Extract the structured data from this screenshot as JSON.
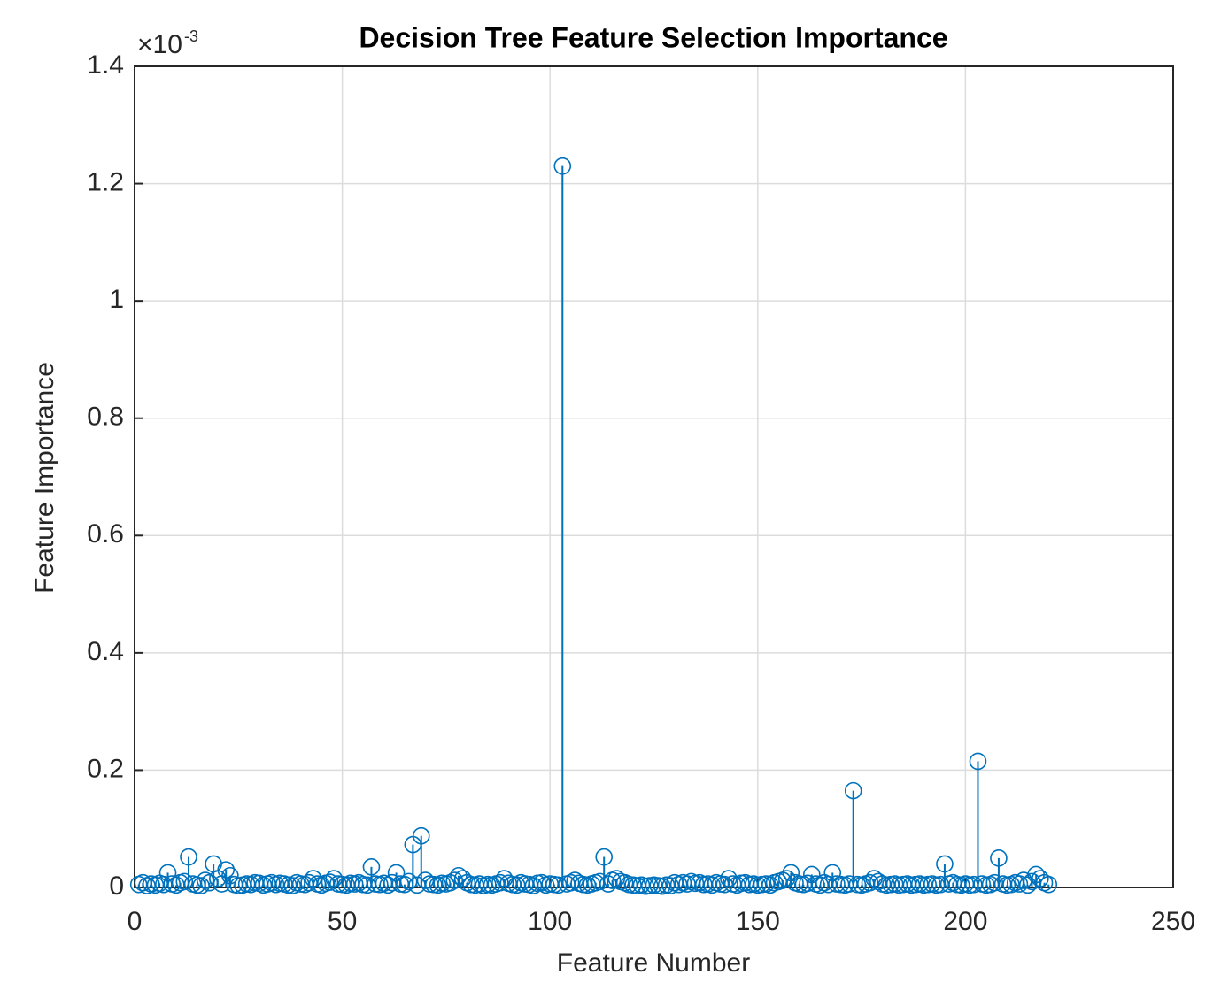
{
  "chart_data": {
    "type": "stem",
    "title": "Decision Tree Feature Selection Importance",
    "xlabel": "Feature Number",
    "ylabel": "Feature Importance",
    "y_exponent_base": "×10",
    "y_exponent": "-3",
    "color": "#0072bd",
    "grid": true,
    "xlim": [
      0,
      250
    ],
    "xticks": [
      0,
      50,
      100,
      150,
      200,
      250
    ],
    "ylim": [
      0,
      1.4
    ],
    "yticks": [
      0,
      0.2,
      0.4,
      0.6,
      0.8,
      1,
      1.2,
      1.4
    ],
    "x": [
      1,
      2,
      3,
      4,
      5,
      6,
      7,
      8,
      9,
      10,
      11,
      12,
      13,
      14,
      15,
      16,
      17,
      18,
      19,
      20,
      21,
      22,
      23,
      24,
      25,
      26,
      27,
      28,
      29,
      30,
      31,
      32,
      33,
      34,
      35,
      36,
      37,
      38,
      39,
      40,
      41,
      42,
      43,
      44,
      45,
      46,
      47,
      48,
      49,
      50,
      51,
      52,
      53,
      54,
      55,
      56,
      57,
      58,
      59,
      60,
      61,
      62,
      63,
      64,
      65,
      66,
      67,
      68,
      69,
      70,
      71,
      72,
      73,
      74,
      75,
      76,
      77,
      78,
      79,
      80,
      81,
      82,
      83,
      84,
      85,
      86,
      87,
      88,
      89,
      90,
      91,
      92,
      93,
      94,
      95,
      96,
      97,
      98,
      99,
      100,
      101,
      102,
      103,
      104,
      105,
      106,
      107,
      108,
      109,
      110,
      111,
      112,
      113,
      114,
      115,
      116,
      117,
      118,
      119,
      120,
      121,
      122,
      123,
      124,
      125,
      126,
      127,
      128,
      129,
      130,
      131,
      132,
      133,
      134,
      135,
      136,
      137,
      138,
      139,
      140,
      141,
      142,
      143,
      144,
      145,
      146,
      147,
      148,
      149,
      150,
      151,
      152,
      153,
      154,
      155,
      156,
      157,
      158,
      159,
      160,
      161,
      162,
      163,
      164,
      165,
      166,
      167,
      168,
      169,
      170,
      171,
      172,
      173,
      174,
      175,
      176,
      177,
      178,
      179,
      180,
      181,
      182,
      183,
      184,
      185,
      186,
      187,
      188,
      189,
      190,
      191,
      192,
      193,
      194,
      195,
      196,
      197,
      198,
      199,
      200,
      201,
      202,
      203,
      204,
      205,
      206,
      207,
      208,
      209,
      210,
      211,
      212,
      213,
      214,
      215,
      216,
      217,
      218,
      219,
      220
    ],
    "values": [
      0.005,
      0.008,
      0.003,
      0.006,
      0.004,
      0.007,
      0.005,
      0.025,
      0.006,
      0.004,
      0.008,
      0.01,
      0.052,
      0.006,
      0.004,
      0.003,
      0.012,
      0.008,
      0.04,
      0.015,
      0.006,
      0.03,
      0.02,
      0.005,
      0.003,
      0.004,
      0.006,
      0.005,
      0.008,
      0.007,
      0.004,
      0.006,
      0.008,
      0.005,
      0.007,
      0.006,
      0.004,
      0.003,
      0.008,
      0.006,
      0.005,
      0.008,
      0.015,
      0.006,
      0.004,
      0.007,
      0.009,
      0.015,
      0.006,
      0.005,
      0.004,
      0.007,
      0.006,
      0.008,
      0.005,
      0.004,
      0.035,
      0.006,
      0.005,
      0.007,
      0.004,
      0.008,
      0.025,
      0.006,
      0.005,
      0.01,
      0.073,
      0.004,
      0.088,
      0.012,
      0.006,
      0.005,
      0.004,
      0.007,
      0.006,
      0.008,
      0.012,
      0.02,
      0.015,
      0.008,
      0.005,
      0.004,
      0.006,
      0.003,
      0.005,
      0.004,
      0.006,
      0.008,
      0.015,
      0.007,
      0.005,
      0.004,
      0.008,
      0.006,
      0.005,
      0.003,
      0.007,
      0.008,
      0.004,
      0.006,
      0.005,
      0.004,
      1.23,
      0.006,
      0.008,
      0.012,
      0.007,
      0.005,
      0.004,
      0.006,
      0.008,
      0.01,
      0.052,
      0.006,
      0.012,
      0.015,
      0.01,
      0.008,
      0.005,
      0.004,
      0.003,
      0.004,
      0.002,
      0.003,
      0.004,
      0.003,
      0.002,
      0.004,
      0.003,
      0.008,
      0.005,
      0.008,
      0.006,
      0.01,
      0.007,
      0.008,
      0.005,
      0.006,
      0.004,
      0.008,
      0.006,
      0.005,
      0.015,
      0.006,
      0.004,
      0.007,
      0.008,
      0.005,
      0.006,
      0.004,
      0.005,
      0.006,
      0.004,
      0.008,
      0.01,
      0.012,
      0.015,
      0.025,
      0.008,
      0.006,
      0.005,
      0.007,
      0.022,
      0.006,
      0.004,
      0.008,
      0.005,
      0.025,
      0.006,
      0.005,
      0.004,
      0.006,
      0.165,
      0.005,
      0.004,
      0.006,
      0.008,
      0.015,
      0.01,
      0.006,
      0.004,
      0.005,
      0.006,
      0.004,
      0.005,
      0.006,
      0.004,
      0.005,
      0.006,
      0.004,
      0.005,
      0.006,
      0.004,
      0.005,
      0.04,
      0.006,
      0.008,
      0.005,
      0.004,
      0.006,
      0.004,
      0.005,
      0.215,
      0.006,
      0.004,
      0.005,
      0.008,
      0.05,
      0.006,
      0.004,
      0.005,
      0.008,
      0.006,
      0.012,
      0.004,
      0.01,
      0.022,
      0.015,
      0.008,
      0.005
    ]
  }
}
